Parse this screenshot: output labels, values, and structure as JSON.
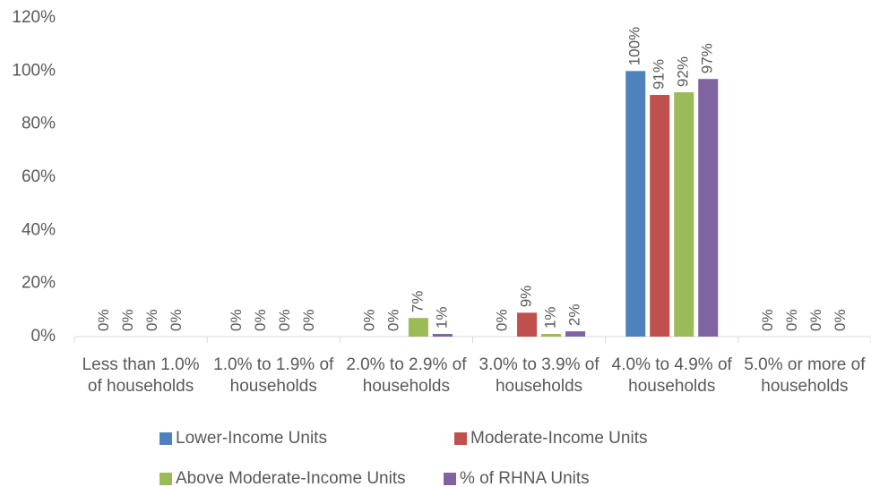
{
  "chart_data": {
    "type": "bar",
    "categories": [
      "Less than 1.0% of households",
      "1.0% to 1.9% of households",
      "2.0% to 2.9% of households",
      "3.0% to 3.9% of households",
      "4.0% to 4.9% of households",
      "5.0% or more of households"
    ],
    "series": [
      {
        "name": "Lower-Income Units",
        "color": "#4f81bd",
        "values": [
          0,
          0,
          0,
          0,
          100,
          0
        ],
        "value_labels": [
          "0%",
          "0%",
          "0%",
          "0%",
          "100%",
          "0%"
        ]
      },
      {
        "name": "Moderate-Income Units",
        "color": "#c0504d",
        "values": [
          0,
          0,
          0,
          9,
          91,
          0
        ],
        "value_labels": [
          "0%",
          "0%",
          "0%",
          "9%",
          "91%",
          "0%"
        ]
      },
      {
        "name": "Above Moderate-Income Units",
        "color": "#9bbb59",
        "values": [
          0,
          0,
          7,
          1,
          92,
          0
        ],
        "value_labels": [
          "0%",
          "0%",
          "7%",
          "1%",
          "92%",
          "0%"
        ]
      },
      {
        "name": "% of RHNA Units",
        "color": "#8064a2",
        "values": [
          0,
          0,
          1,
          2,
          97,
          0
        ],
        "value_labels": [
          "0%",
          "0%",
          "1%",
          "2%",
          "97%",
          "0%"
        ]
      }
    ],
    "ylim": [
      0,
      120
    ],
    "yticks": [
      {
        "value": 0,
        "label": "0%"
      },
      {
        "value": 20,
        "label": "20%"
      },
      {
        "value": 40,
        "label": "40%"
      },
      {
        "value": 60,
        "label": "60%"
      },
      {
        "value": 80,
        "label": "80%"
      },
      {
        "value": 100,
        "label": "100%"
      },
      {
        "value": 120,
        "label": "120%"
      }
    ],
    "grid": false,
    "legend": "bottom"
  }
}
